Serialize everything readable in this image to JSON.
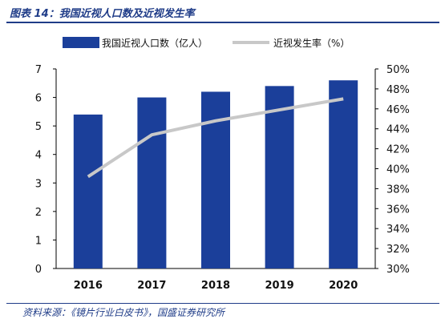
{
  "figure_title": "图表 14：我国近视人口数及近视发生率",
  "source": "资料来源：《镜片行业白皮书》，国盛证券研究所",
  "colors": {
    "bar": "#1b3f9a",
    "line": "#c8c8c8",
    "axis": "#000000",
    "title": "#1f3c88"
  },
  "chart_data": {
    "type": "bar",
    "categories": [
      "2016",
      "2017",
      "2018",
      "2019",
      "2020"
    ],
    "series": [
      {
        "name": "我国近视人口数（亿人）",
        "type": "bar",
        "axis": "left",
        "values": [
          5.4,
          6.0,
          6.2,
          6.4,
          6.6
        ]
      },
      {
        "name": "近视发生率（%）",
        "type": "line",
        "axis": "right",
        "values": [
          39.2,
          43.4,
          44.8,
          45.9,
          47.0
        ]
      }
    ],
    "ylim": [
      0,
      7
    ],
    "yticks": [
      "0",
      "1",
      "2",
      "3",
      "4",
      "5",
      "6",
      "7"
    ],
    "y2lim": [
      30,
      50
    ],
    "y2ticks": [
      "30%",
      "32%",
      "34%",
      "36%",
      "38%",
      "40%",
      "42%",
      "44%",
      "46%",
      "48%",
      "50%"
    ],
    "legend_position": "top",
    "grid": false
  }
}
